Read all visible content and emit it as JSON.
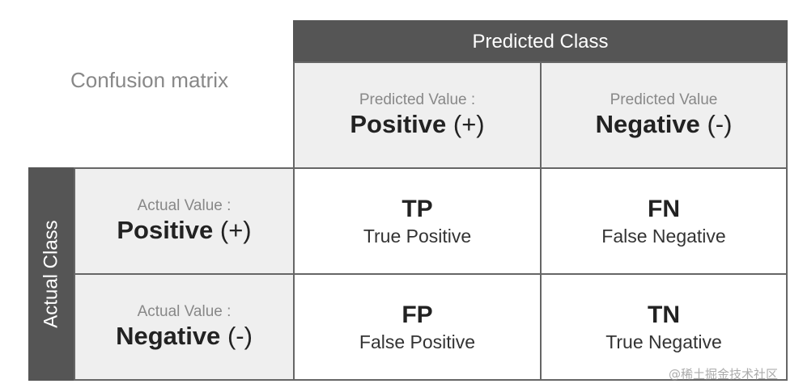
{
  "title": "Confusion matrix",
  "predicted_class_label": "Predicted Class",
  "actual_class_label": "Actual Class",
  "columns": [
    {
      "caption": "Predicted Value :",
      "value": "Positive",
      "sign": "(+)"
    },
    {
      "caption": "Predicted Value",
      "value": "Negative",
      "sign": "(-)"
    }
  ],
  "rows": [
    {
      "caption": "Actual Value :",
      "value": "Positive",
      "sign": "(+)"
    },
    {
      "caption": "Actual Value :",
      "value": "Negative",
      "sign": "(-)"
    }
  ],
  "cells": [
    [
      {
        "abbr": "TP",
        "name": "True Positive"
      },
      {
        "abbr": "FN",
        "name": "False Negative"
      }
    ],
    [
      {
        "abbr": "FP",
        "name": "False Positive"
      },
      {
        "abbr": "TN",
        "name": "True Negative"
      }
    ]
  ],
  "watermark": "@稀土掘金技术社区",
  "colors": {
    "header_bar": "#555555",
    "header_cell": "#efefef",
    "border": "#666666"
  }
}
